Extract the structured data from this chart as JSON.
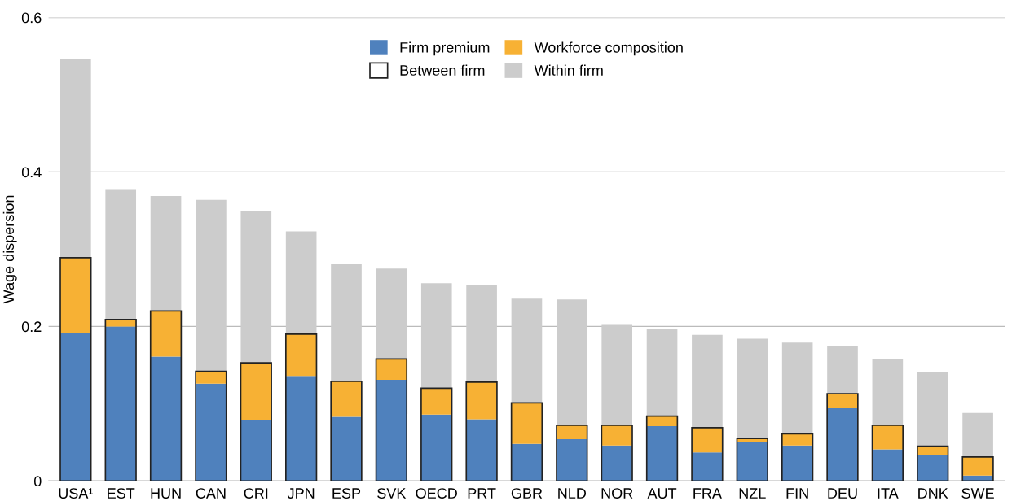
{
  "chart_data": {
    "type": "bar",
    "ylabel": "Wage dispersion",
    "categories": [
      "USA¹",
      "EST",
      "HUN",
      "CAN",
      "CRI",
      "JPN",
      "ESP",
      "SVK",
      "OECD",
      "PRT",
      "GBR",
      "NLD",
      "NOR",
      "AUT",
      "FRA",
      "NZL",
      "FIN",
      "DEU",
      "ITA",
      "DNK",
      "SWE"
    ],
    "series": [
      {
        "name": "Firm premium",
        "color": "#4f81bd",
        "base": [
          0,
          0,
          0,
          0,
          0,
          0,
          0,
          0,
          0,
          0,
          0,
          0,
          0,
          0,
          0,
          0,
          0,
          0,
          0,
          0,
          0
        ],
        "values": [
          0.192,
          0.2,
          0.161,
          0.126,
          0.079,
          0.136,
          0.083,
          0.131,
          0.086,
          0.08,
          0.048,
          0.054,
          0.046,
          0.071,
          0.037,
          0.05,
          0.046,
          0.094,
          0.041,
          0.033,
          0.007
        ]
      },
      {
        "name": "Workforce composition",
        "color": "#f7b134",
        "base": [
          0.192,
          0.2,
          0.161,
          0.126,
          0.079,
          0.136,
          0.083,
          0.131,
          0.086,
          0.08,
          0.048,
          0.054,
          0.046,
          0.071,
          0.037,
          0.05,
          0.046,
          0.094,
          0.041,
          0.033,
          0.007
        ],
        "values": [
          0.097,
          0.009,
          0.059,
          0.016,
          0.074,
          0.054,
          0.046,
          0.027,
          0.034,
          0.048,
          0.053,
          0.018,
          0.026,
          0.013,
          0.032,
          0.005,
          0.015,
          0.019,
          0.031,
          0.012,
          0.024
        ]
      },
      {
        "name": "Within firm",
        "color": "#cccccc",
        "base": [
          0.289,
          0.209,
          0.22,
          0.142,
          0.153,
          0.19,
          0.129,
          0.158,
          0.12,
          0.128,
          0.101,
          0.072,
          0.072,
          0.084,
          0.069,
          0.055,
          0.061,
          0.113,
          0.072,
          0.045,
          0.031
        ],
        "values": [
          0.257,
          0.169,
          0.149,
          0.222,
          0.196,
          0.133,
          0.152,
          0.117,
          0.136,
          0.126,
          0.135,
          0.163,
          0.131,
          0.113,
          0.12,
          0.129,
          0.118,
          0.061,
          0.086,
          0.096,
          0.057
        ]
      },
      {
        "name": "Between firm",
        "color": "#222222",
        "base": [
          0,
          0,
          0,
          0,
          0,
          0,
          0,
          0,
          0,
          0,
          0,
          0,
          0,
          0,
          0,
          0,
          0,
          0,
          0,
          0,
          0
        ],
        "values": [
          0.289,
          0.209,
          0.22,
          0.142,
          0.153,
          0.19,
          0.129,
          0.158,
          0.12,
          0.128,
          0.101,
          0.072,
          0.072,
          0.084,
          0.069,
          0.055,
          0.061,
          0.113,
          0.072,
          0.045,
          0.031
        ]
      }
    ],
    "ylim": [
      0,
      0.6
    ],
    "yticks": [
      0,
      0.2,
      0.4,
      0.6
    ],
    "grid": "y",
    "legend": "top"
  }
}
